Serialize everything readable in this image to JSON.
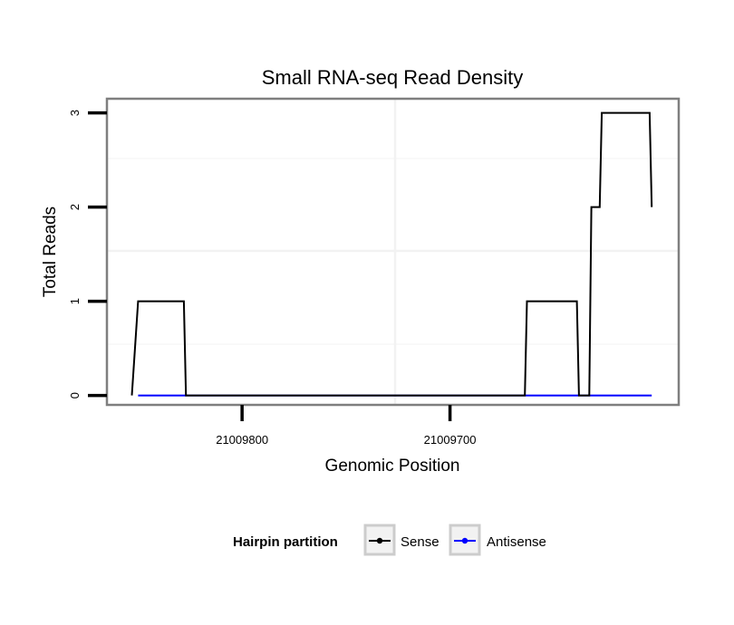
{
  "chart_data": {
    "type": "line",
    "title": "Small RNA-seq Read Density",
    "xlabel": "Genomic Position",
    "ylabel": "Total Reads",
    "xlim": [
      21009865,
      21009590
    ],
    "ylim": [
      -0.1,
      3.15
    ],
    "x_reversed": true,
    "x_ticks": [
      21009800,
      21009700
    ],
    "x_tick_labels": [
      "21009800",
      "21009700"
    ],
    "y_ticks": [
      0,
      1,
      2,
      3
    ],
    "y_tick_labels": [
      "0",
      "1",
      "2",
      "3"
    ],
    "grid": true,
    "legend": {
      "title": "Hairpin partition",
      "position": "bottom",
      "entries": [
        "Sense",
        "Antisense"
      ]
    },
    "series": [
      {
        "name": "Sense",
        "color": "#000000",
        "x": [
          21009853,
          21009850,
          21009828,
          21009827,
          21009664,
          21009663,
          21009639,
          21009638,
          21009633,
          21009632,
          21009628,
          21009627,
          21009623,
          21009622,
          21009604,
          21009603
        ],
        "y": [
          0,
          1,
          1,
          0,
          0,
          1,
          1,
          0,
          0,
          2,
          2,
          3,
          3,
          3,
          3,
          2
        ]
      },
      {
        "name": "Antisense",
        "color": "#0000ff",
        "x": [
          21009850,
          21009603
        ],
        "y": [
          0,
          0
        ]
      }
    ]
  }
}
